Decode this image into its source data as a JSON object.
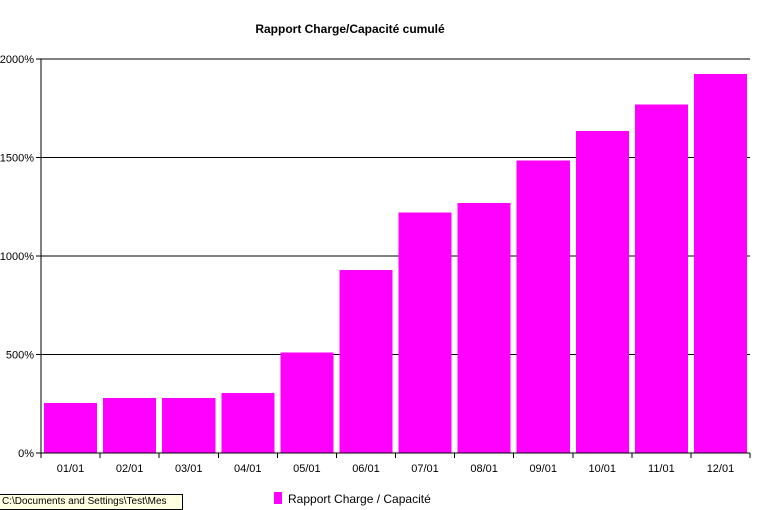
{
  "colors": {
    "bar": "#ff00ff",
    "axis": "#000000",
    "grid": "#000000",
    "background": "#ffffff",
    "tooltip_bg": "#ffffe1"
  },
  "tooltip": {
    "text": "C:\\Documents and Settings\\Test\\Mes"
  },
  "chart_data": {
    "type": "bar",
    "title": "Rapport Charge/Capacité cumulé",
    "categories": [
      "01/01",
      "02/01",
      "03/01",
      "04/01",
      "05/01",
      "06/01",
      "07/01",
      "08/01",
      "09/01",
      "10/01",
      "11/01",
      "12/01"
    ],
    "series": [
      {
        "name": "Rapport Charge / Capacité",
        "values": [
          255,
          280,
          280,
          305,
          510,
          930,
          1220,
          1270,
          1485,
          1635,
          1770,
          1925
        ]
      }
    ],
    "ylim": [
      0,
      2000
    ],
    "yticks": [
      0,
      500,
      1000,
      1500,
      2000
    ],
    "ytick_labels": [
      "0%",
      "500%",
      "1000%",
      "1500%",
      "2000%"
    ],
    "xlabel": "",
    "ylabel": "",
    "grid": true,
    "legend_position": "bottom"
  }
}
